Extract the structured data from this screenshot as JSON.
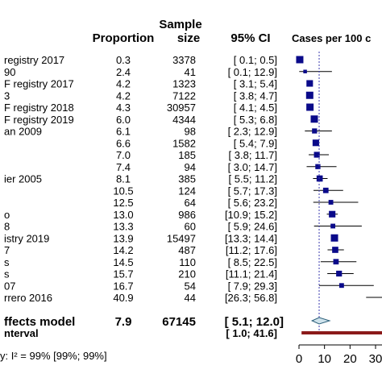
{
  "header": {
    "proportion": "Proportion",
    "sample_line1": "Sample",
    "sample_line2": "size",
    "ci": "95% CI",
    "cases": "Cases per 100 c"
  },
  "chart_data": {
    "type": "forest",
    "x_axis": {
      "ticks": [
        0,
        10,
        20,
        30
      ],
      "xlim": [
        0,
        30
      ]
    },
    "reference_line": 7.9,
    "studies": [
      {
        "label": "registry 2017",
        "proportion": "0.3",
        "size": "3378",
        "ci": "[ 0.1;  0.5]",
        "est": 0.3,
        "lo": 0.1,
        "hi": 0.5,
        "w": 1.0
      },
      {
        "label": "90",
        "proportion": "2.4",
        "size": "41",
        "ci": "[ 0.1; 12.9]",
        "est": 2.4,
        "lo": 0.1,
        "hi": 12.9,
        "w": 0.5
      },
      {
        "label": "F registry 2017",
        "proportion": "4.2",
        "size": "1323",
        "ci": "[ 3.1;  5.4]",
        "est": 4.2,
        "lo": 3.1,
        "hi": 5.4,
        "w": 0.9
      },
      {
        "label": "3",
        "proportion": "4.2",
        "size": "7122",
        "ci": "[ 3.8;  4.7]",
        "est": 4.2,
        "lo": 3.8,
        "hi": 4.7,
        "w": 1.0
      },
      {
        "label": "F registry 2018",
        "proportion": "4.3",
        "size": "30957",
        "ci": "[ 4.1;  4.5]",
        "est": 4.3,
        "lo": 4.1,
        "hi": 4.5,
        "w": 1.0
      },
      {
        "label": "F registry 2019",
        "proportion": "6.0",
        "size": "4344",
        "ci": "[ 5.3;  6.8]",
        "est": 6.0,
        "lo": 5.3,
        "hi": 6.8,
        "w": 1.0
      },
      {
        "label": "an 2009",
        "proportion": "6.1",
        "size": "98",
        "ci": "[ 2.3; 12.9]",
        "est": 6.1,
        "lo": 2.3,
        "hi": 12.9,
        "w": 0.7
      },
      {
        "label": "",
        "proportion": "6.6",
        "size": "1582",
        "ci": "[ 5.4;  7.9]",
        "est": 6.6,
        "lo": 5.4,
        "hi": 7.9,
        "w": 0.9
      },
      {
        "label": "",
        "proportion": "7.0",
        "size": "185",
        "ci": "[ 3.8; 11.7]",
        "est": 7.0,
        "lo": 3.8,
        "hi": 11.7,
        "w": 0.8
      },
      {
        "label": "",
        "proportion": "7.4",
        "size": "94",
        "ci": "[ 3.0; 14.7]",
        "est": 7.4,
        "lo": 3.0,
        "hi": 14.7,
        "w": 0.7
      },
      {
        "label": "ier 2005",
        "proportion": "8.1",
        "size": "385",
        "ci": "[ 5.5; 11.2]",
        "est": 8.1,
        "lo": 5.5,
        "hi": 11.2,
        "w": 0.85
      },
      {
        "label": "",
        "proportion": "10.5",
        "size": "124",
        "ci": "[ 5.7; 17.3]",
        "est": 10.5,
        "lo": 5.7,
        "hi": 17.3,
        "w": 0.75
      },
      {
        "label": "",
        "proportion": "12.5",
        "size": "64",
        "ci": "[ 5.6; 23.2]",
        "est": 12.5,
        "lo": 5.6,
        "hi": 23.2,
        "w": 0.65
      },
      {
        "label": "o",
        "proportion": "13.0",
        "size": "986",
        "ci": "[10.9; 15.2]",
        "est": 13.0,
        "lo": 10.9,
        "hi": 15.2,
        "w": 0.9
      },
      {
        "label": "8",
        "proportion": "13.3",
        "size": "60",
        "ci": "[ 5.9; 24.6]",
        "est": 13.3,
        "lo": 5.9,
        "hi": 24.6,
        "w": 0.65
      },
      {
        "label": "istry 2019",
        "proportion": "13.9",
        "size": "15497",
        "ci": "[13.3; 14.4]",
        "est": 13.9,
        "lo": 13.3,
        "hi": 14.4,
        "w": 1.0
      },
      {
        "label": "7",
        "proportion": "14.2",
        "size": "487",
        "ci": "[11.2; 17.6]",
        "est": 14.2,
        "lo": 11.2,
        "hi": 17.6,
        "w": 0.85
      },
      {
        "label": "s",
        "proportion": "14.5",
        "size": "110",
        "ci": "[ 8.5; 22.5]",
        "est": 14.5,
        "lo": 8.5,
        "hi": 22.5,
        "w": 0.75
      },
      {
        "label": "s",
        "proportion": "15.7",
        "size": "210",
        "ci": "[11.1; 21.4]",
        "est": 15.7,
        "lo": 11.1,
        "hi": 21.4,
        "w": 0.8
      },
      {
        "label": "07",
        "proportion": "16.7",
        "size": "54",
        "ci": "[ 7.9; 29.3]",
        "est": 16.7,
        "lo": 7.9,
        "hi": 29.3,
        "w": 0.65
      },
      {
        "label": "rrero 2016",
        "proportion": "40.9",
        "size": "44",
        "ci": "[26.3; 56.8]",
        "est": 40.9,
        "lo": 26.3,
        "hi": 56.8,
        "w": 0.6
      }
    ],
    "summary": {
      "label": "ffects model",
      "proportion": "7.9",
      "size": "67145",
      "ci": "[ 5.1; 12.0]",
      "est": 7.9,
      "lo": 5.1,
      "hi": 12.0
    },
    "prediction": {
      "label": "nterval",
      "ci": "[ 1.0; 41.6]",
      "lo": 1.0,
      "hi": 41.6
    },
    "heterogeneity": "y: I² = 99% [99%; 99%]"
  },
  "colors": {
    "square": "#0a0a8a",
    "diamond_fill": "#cfe3ec",
    "diamond_stroke": "#2c5f7a",
    "prediction_bar": "#8b1a1a",
    "ref_line": "#3a3ab0"
  }
}
